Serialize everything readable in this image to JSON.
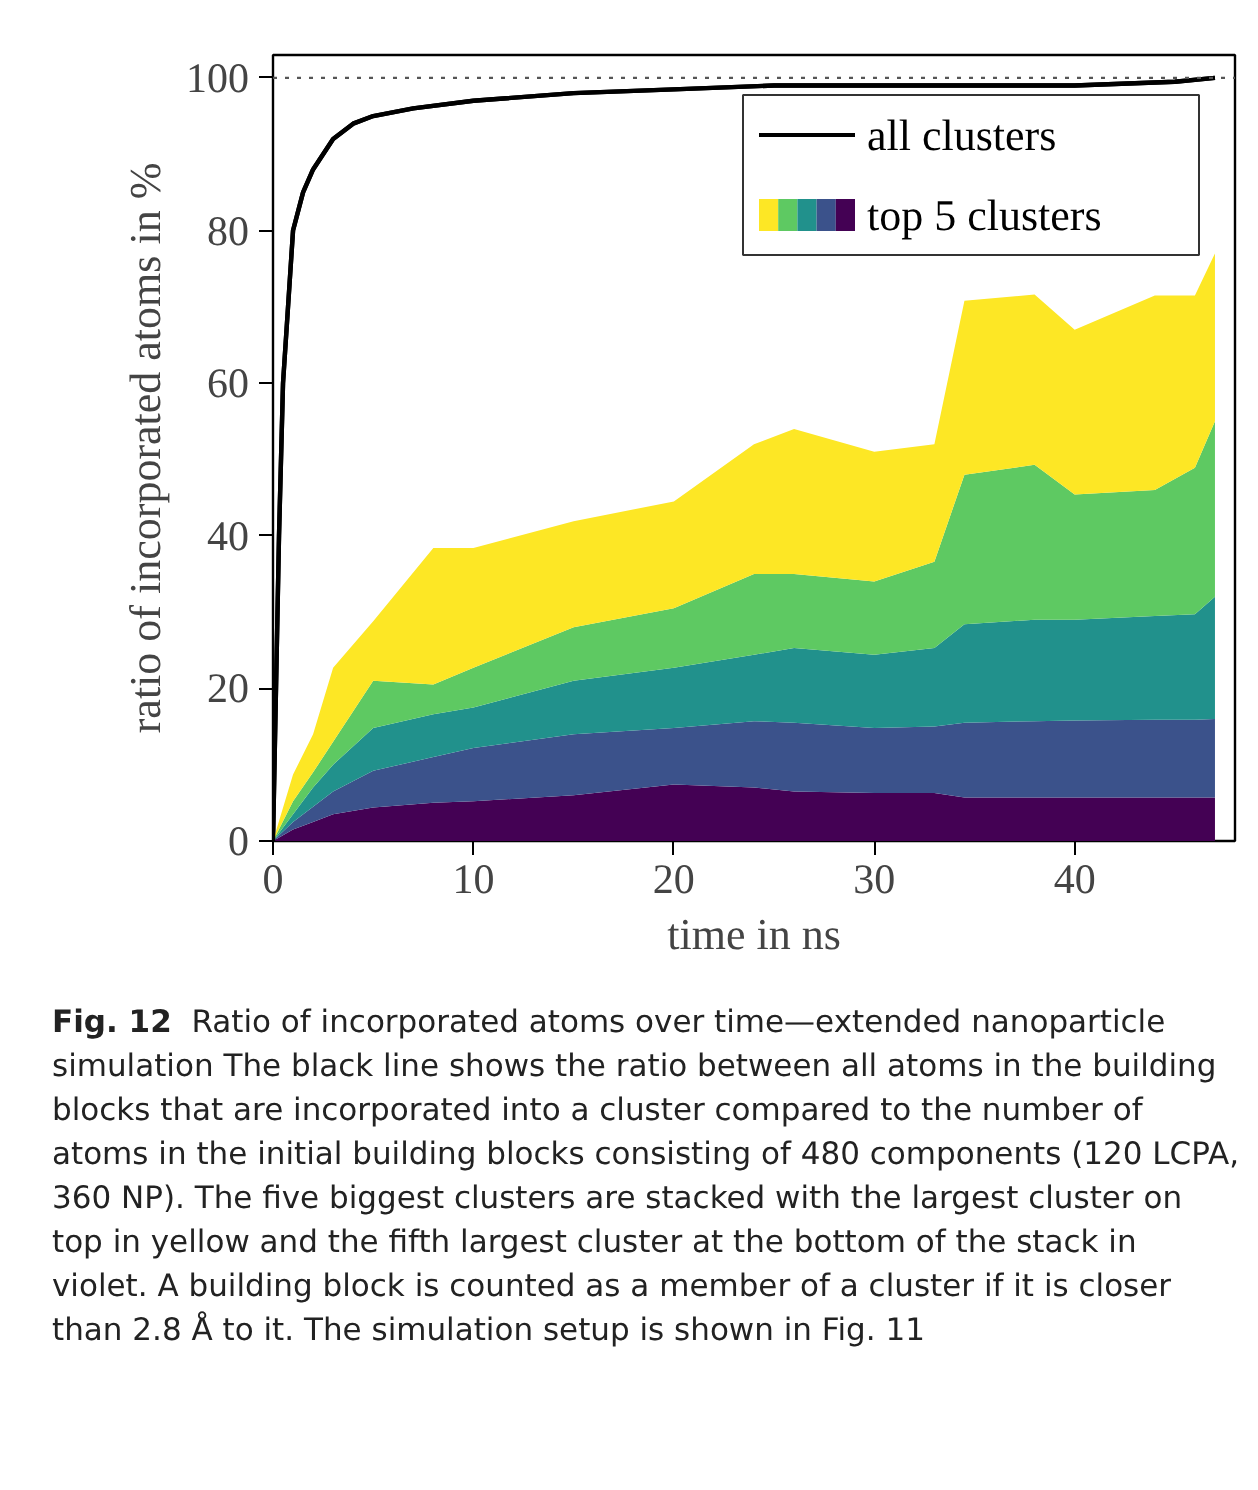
{
  "chart_data": {
    "type": "area",
    "stacked": true,
    "xlabel": "time in ns",
    "ylabel": "ratio of incorporated atoms in %",
    "xlim": [
      0,
      48
    ],
    "ylim": [
      0,
      103
    ],
    "xticks": [
      0,
      10,
      20,
      30,
      40
    ],
    "yticks": [
      0,
      20,
      40,
      60,
      80,
      100
    ],
    "grid": false,
    "legend": "top right",
    "ref_lines": [
      {
        "axis": "y",
        "value": 100,
        "color": "#555555",
        "line_style": "dotted"
      }
    ],
    "series": [
      {
        "name": "all clusters",
        "type": "line",
        "color": "#000000",
        "x": [
          0,
          0.3,
          0.5,
          1,
          1.5,
          2,
          3,
          4,
          5,
          7,
          10,
          15,
          20,
          25,
          30,
          35,
          40,
          45,
          47
        ],
        "values": [
          0,
          40,
          60,
          80,
          85,
          88,
          92,
          94,
          95,
          96,
          97,
          98,
          98.5,
          99,
          99,
          99,
          99,
          99.5,
          100
        ]
      },
      {
        "name": "top 5 clusters",
        "color": "#440154",
        "x": [
          0,
          1,
          2,
          3,
          5,
          8,
          10,
          15,
          20,
          24,
          26,
          30,
          33,
          34.5,
          38,
          40,
          44,
          46,
          47
        ],
        "values": [
          0,
          1.5,
          2.5,
          3.5,
          4.4,
          5,
          5.2,
          6,
          7.4,
          7,
          6.5,
          6.3,
          6.3,
          5.7,
          5.7,
          5.7,
          5.7,
          5.7,
          5.7
        ]
      },
      {
        "color": "#3b528b",
        "x": [
          0,
          1,
          2,
          3,
          5,
          8,
          10,
          15,
          20,
          24,
          26,
          30,
          33,
          34.5,
          38,
          40,
          44,
          46,
          47
        ],
        "values": [
          0,
          1,
          2,
          3,
          4.8,
          6,
          7,
          8,
          7.4,
          8.7,
          9,
          8.5,
          8.7,
          9.8,
          10,
          10.1,
          10.2,
          10.2,
          10.3
        ]
      },
      {
        "color": "#21918c",
        "x": [
          0,
          1,
          2,
          3,
          5,
          8,
          10,
          15,
          20,
          24,
          26,
          30,
          33,
          34.5,
          38,
          40,
          44,
          46,
          47
        ],
        "values": [
          0,
          1,
          2.5,
          3.5,
          5.6,
          5.6,
          5.3,
          7,
          7.9,
          8.7,
          9.8,
          9.6,
          10.3,
          12.9,
          13.3,
          13.2,
          13.6,
          13.8,
          16
        ]
      },
      {
        "color": "#5ec962",
        "x": [
          0,
          1,
          2,
          3,
          5,
          8,
          10,
          15,
          20,
          24,
          26,
          30,
          33,
          34.5,
          38,
          40,
          44,
          46,
          47
        ],
        "values": [
          0,
          1.7,
          2,
          3,
          6.2,
          3.9,
          5.2,
          7,
          7.8,
          10.6,
          9.7,
          9.6,
          11.3,
          19.6,
          20.3,
          16.4,
          16.5,
          19.2,
          23
        ]
      },
      {
        "color": "#fde725",
        "x": [
          0,
          1,
          2,
          3,
          5,
          8,
          10,
          15,
          20,
          24,
          26,
          30,
          33,
          34.5,
          38,
          40,
          44,
          46,
          47
        ],
        "values": [
          0,
          3.5,
          5,
          9.7,
          7.8,
          17.9,
          15.7,
          13.9,
          14,
          17,
          19,
          17,
          15.4,
          22.8,
          22.3,
          21.6,
          25.5,
          22.6,
          22
        ]
      }
    ],
    "annotations": [
      "Fig. 12",
      "Ratio of incorporated atoms over time—extended nanoparticle simulation The black line shows the ratio between all atoms in the building blocks that are incorporated into a cluster compared to the number of atoms in the initial building blocks consisting of 480 components (120 LCPA, 360 NP). The five biggest clusters are stacked with the largest cluster on top in yellow and the fifth largest cluster at the bottom of the stack in violet. A building block is counted as a member of a cluster if it is closer than 2.8 Å to it. The simulation setup is shown in Fig. 11"
    ]
  }
}
